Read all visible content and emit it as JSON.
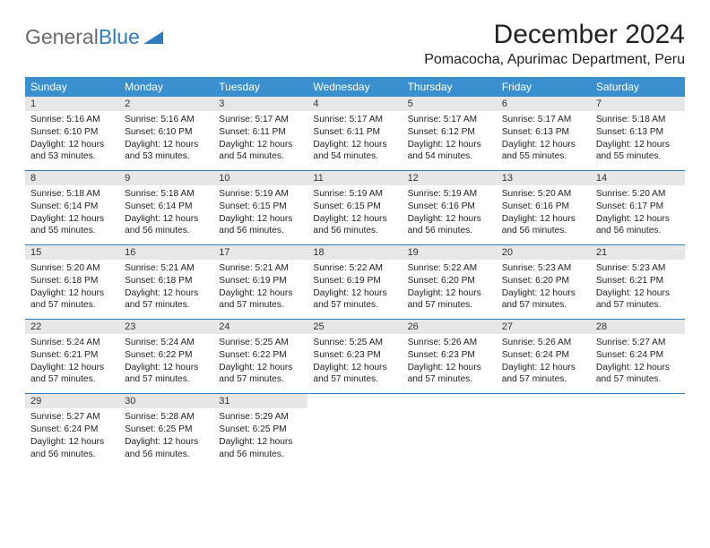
{
  "header": {
    "logo_part1": "General",
    "logo_part2": "Blue",
    "month_title": "December 2024",
    "location": "Pomacocha, Apurimac Department, Peru"
  },
  "colors": {
    "header_bg": "#3a8fce",
    "header_text": "#ffffff",
    "daynum_bg": "#e7e7e7",
    "row_border": "#2f7bbf",
    "logo_gray": "#6b6b6b",
    "logo_blue": "#2f7bbf",
    "page_bg": "#ffffff",
    "body_text": "#222222"
  },
  "days_of_week": [
    "Sunday",
    "Monday",
    "Tuesday",
    "Wednesday",
    "Thursday",
    "Friday",
    "Saturday"
  ],
  "weeks": [
    [
      {
        "n": "1",
        "sr": "5:16 AM",
        "ss": "6:10 PM",
        "dl": "12 hours and 53 minutes."
      },
      {
        "n": "2",
        "sr": "5:16 AM",
        "ss": "6:10 PM",
        "dl": "12 hours and 53 minutes."
      },
      {
        "n": "3",
        "sr": "5:17 AM",
        "ss": "6:11 PM",
        "dl": "12 hours and 54 minutes."
      },
      {
        "n": "4",
        "sr": "5:17 AM",
        "ss": "6:11 PM",
        "dl": "12 hours and 54 minutes."
      },
      {
        "n": "5",
        "sr": "5:17 AM",
        "ss": "6:12 PM",
        "dl": "12 hours and 54 minutes."
      },
      {
        "n": "6",
        "sr": "5:17 AM",
        "ss": "6:13 PM",
        "dl": "12 hours and 55 minutes."
      },
      {
        "n": "7",
        "sr": "5:18 AM",
        "ss": "6:13 PM",
        "dl": "12 hours and 55 minutes."
      }
    ],
    [
      {
        "n": "8",
        "sr": "5:18 AM",
        "ss": "6:14 PM",
        "dl": "12 hours and 55 minutes."
      },
      {
        "n": "9",
        "sr": "5:18 AM",
        "ss": "6:14 PM",
        "dl": "12 hours and 56 minutes."
      },
      {
        "n": "10",
        "sr": "5:19 AM",
        "ss": "6:15 PM",
        "dl": "12 hours and 56 minutes."
      },
      {
        "n": "11",
        "sr": "5:19 AM",
        "ss": "6:15 PM",
        "dl": "12 hours and 56 minutes."
      },
      {
        "n": "12",
        "sr": "5:19 AM",
        "ss": "6:16 PM",
        "dl": "12 hours and 56 minutes."
      },
      {
        "n": "13",
        "sr": "5:20 AM",
        "ss": "6:16 PM",
        "dl": "12 hours and 56 minutes."
      },
      {
        "n": "14",
        "sr": "5:20 AM",
        "ss": "6:17 PM",
        "dl": "12 hours and 56 minutes."
      }
    ],
    [
      {
        "n": "15",
        "sr": "5:20 AM",
        "ss": "6:18 PM",
        "dl": "12 hours and 57 minutes."
      },
      {
        "n": "16",
        "sr": "5:21 AM",
        "ss": "6:18 PM",
        "dl": "12 hours and 57 minutes."
      },
      {
        "n": "17",
        "sr": "5:21 AM",
        "ss": "6:19 PM",
        "dl": "12 hours and 57 minutes."
      },
      {
        "n": "18",
        "sr": "5:22 AM",
        "ss": "6:19 PM",
        "dl": "12 hours and 57 minutes."
      },
      {
        "n": "19",
        "sr": "5:22 AM",
        "ss": "6:20 PM",
        "dl": "12 hours and 57 minutes."
      },
      {
        "n": "20",
        "sr": "5:23 AM",
        "ss": "6:20 PM",
        "dl": "12 hours and 57 minutes."
      },
      {
        "n": "21",
        "sr": "5:23 AM",
        "ss": "6:21 PM",
        "dl": "12 hours and 57 minutes."
      }
    ],
    [
      {
        "n": "22",
        "sr": "5:24 AM",
        "ss": "6:21 PM",
        "dl": "12 hours and 57 minutes."
      },
      {
        "n": "23",
        "sr": "5:24 AM",
        "ss": "6:22 PM",
        "dl": "12 hours and 57 minutes."
      },
      {
        "n": "24",
        "sr": "5:25 AM",
        "ss": "6:22 PM",
        "dl": "12 hours and 57 minutes."
      },
      {
        "n": "25",
        "sr": "5:25 AM",
        "ss": "6:23 PM",
        "dl": "12 hours and 57 minutes."
      },
      {
        "n": "26",
        "sr": "5:26 AM",
        "ss": "6:23 PM",
        "dl": "12 hours and 57 minutes."
      },
      {
        "n": "27",
        "sr": "5:26 AM",
        "ss": "6:24 PM",
        "dl": "12 hours and 57 minutes."
      },
      {
        "n": "28",
        "sr": "5:27 AM",
        "ss": "6:24 PM",
        "dl": "12 hours and 57 minutes."
      }
    ],
    [
      {
        "n": "29",
        "sr": "5:27 AM",
        "ss": "6:24 PM",
        "dl": "12 hours and 56 minutes."
      },
      {
        "n": "30",
        "sr": "5:28 AM",
        "ss": "6:25 PM",
        "dl": "12 hours and 56 minutes."
      },
      {
        "n": "31",
        "sr": "5:29 AM",
        "ss": "6:25 PM",
        "dl": "12 hours and 56 minutes."
      },
      null,
      null,
      null,
      null
    ]
  ],
  "labels": {
    "sunrise": "Sunrise: ",
    "sunset": "Sunset: ",
    "daylight": "Daylight: "
  }
}
